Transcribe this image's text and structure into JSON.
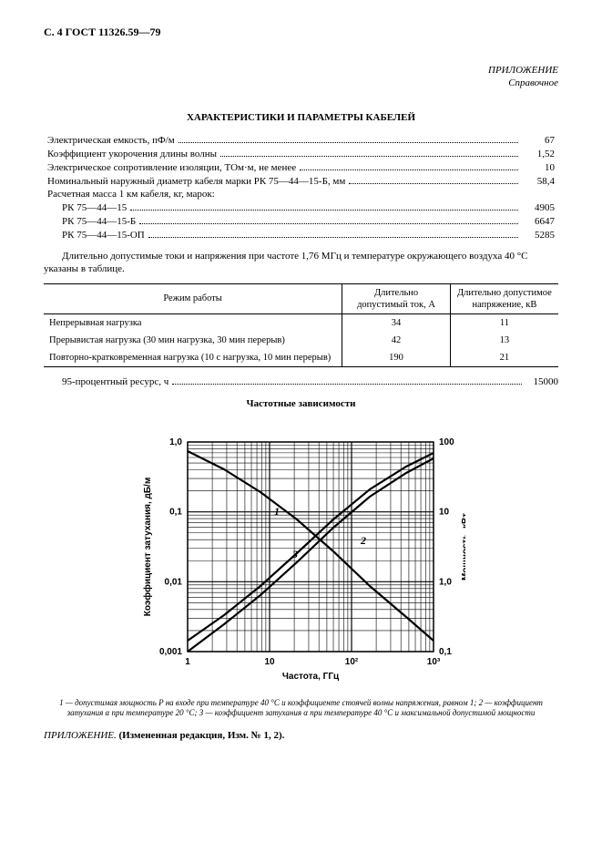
{
  "header": "С. 4 ГОСТ 11326.59—79",
  "appendix": {
    "title": "ПРИЛОЖЕНИЕ",
    "subtitle": "Справочное"
  },
  "section_title": "ХАРАКТЕРИСТИКИ И ПАРАМЕТРЫ КАБЕЛЕЙ",
  "params": [
    {
      "label": "Электрическая емкость, пФ/м",
      "value": "67"
    },
    {
      "label": "Коэффициент укорочения длины волны",
      "value": "1,52"
    },
    {
      "label": "Электрическое сопротивление изоляции, ТОм·м, не менее",
      "value": "10"
    },
    {
      "label": "Номинальный наружный диаметр кабеля марки РК 75—44—15-Б, мм",
      "value": "58,4"
    }
  ],
  "mass": {
    "intro": "Расчетная масса 1 км кабеля, кг, марок:",
    "rows": [
      {
        "label": "РК 75—44—15",
        "value": "4905"
      },
      {
        "label": "РК 75—44—15-Б",
        "value": "6647"
      },
      {
        "label": "РК 75—44—15-ОП",
        "value": "5285"
      }
    ]
  },
  "note_text": "Длительно допустимые токи и напряжения при частоте 1,76 МГц и температуре окружающего воздуха 40 °С указаны в таблице.",
  "table": {
    "headers": [
      "Режим работы",
      "Длительно допустимый ток, А",
      "Длительно допустимое напряжение, кВ"
    ],
    "rows": [
      [
        "Непрерывная нагрузка",
        "34",
        "11"
      ],
      [
        "Прерывистая нагрузка (30 мин нагрузка, 30 мин перерыв)",
        "42",
        "13"
      ],
      [
        "Повторно-кратковременная нагрузка (10 с нагрузка, 10 мин перерыв)",
        "190",
        "21"
      ]
    ]
  },
  "resource": {
    "label": "95-процентный ресурс, ч",
    "value": "15000"
  },
  "chart": {
    "title": "Частотные зависимости",
    "xaxis_label": "Частота, ГГц",
    "yaxis_left_label": "Коэффициент затухания, дБ/м",
    "yaxis_right_label": "Мощность, кВт",
    "x_ticks": [
      "1",
      "10",
      "10²",
      "10³"
    ],
    "y_left_ticks": [
      "0,001",
      "0,01",
      "0,1",
      "1,0"
    ],
    "y_right_ticks": [
      "0,1",
      "1,0",
      "10",
      "100"
    ],
    "curve_labels": [
      "1",
      "2",
      "3"
    ],
    "plot": {
      "grid_color": "#000000",
      "bg_color": "#ffffff",
      "line_color": "#000000",
      "line_width_main": 2.2,
      "line_width_grid": 0.6,
      "font_size_axis": 10,
      "font_size_tick": 10,
      "font_weight_label": "bold",
      "curves": {
        "c1_power": [
          [
            0,
            220
          ],
          [
            40,
            200
          ],
          [
            80,
            175
          ],
          [
            120,
            145
          ],
          [
            160,
            110
          ],
          [
            200,
            72
          ],
          [
            240,
            38
          ],
          [
            270,
            12
          ]
        ],
        "c2_atten": [
          [
            0,
            12
          ],
          [
            40,
            40
          ],
          [
            80,
            72
          ],
          [
            120,
            108
          ],
          [
            160,
            145
          ],
          [
            200,
            178
          ],
          [
            240,
            203
          ],
          [
            270,
            218
          ]
        ],
        "c3_atten": [
          [
            0,
            0
          ],
          [
            40,
            30
          ],
          [
            80,
            62
          ],
          [
            120,
            98
          ],
          [
            160,
            136
          ],
          [
            200,
            170
          ],
          [
            240,
            196
          ],
          [
            270,
            212
          ]
        ]
      },
      "label_positions": {
        "1": [
          95,
          150
        ],
        "2": [
          190,
          118
        ],
        "3": [
          115,
          103
        ]
      }
    },
    "caption": "1 — допустимая мощность P на входе при температуре 40 °С и коэффициенте стоячей волны напряжения, равном 1; 2 — коэффициент затухания α при температуре 20 °С; 3 — коэффициент затухания α при температуре 40 °С и максимальной допустимой мощности"
  },
  "final_note": {
    "prefix": "ПРИЛОЖЕНИЕ.",
    "text": "(Измененная редакция, Изм. № 1, 2)."
  }
}
